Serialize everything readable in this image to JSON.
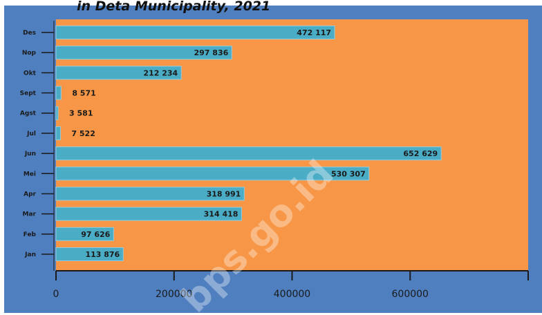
{
  "header": {
    "title_fragment": "in Deta Municipality, 2021"
  },
  "watermark": "bps.go.id",
  "colors": {
    "background": "#4f7fbf",
    "plot_area": "#f79646",
    "bar": "#4bacc6",
    "bar_stroke": "#93cddd"
  },
  "chart_data": {
    "type": "bar",
    "orientation": "horizontal",
    "categories": [
      "Jan",
      "Feb",
      "Mar",
      "Apr",
      "Mei",
      "Jun",
      "Jul",
      "Agst",
      "Sept",
      "Okt",
      "Nop",
      "Des"
    ],
    "values": [
      113876,
      97626,
      314418,
      318991,
      530307,
      652629,
      7522,
      3581,
      8571,
      212234,
      297836,
      472117
    ],
    "value_labels": [
      "113 876",
      "97 626",
      "314 418",
      "318 991",
      "530 307",
      "652 629",
      "7 522",
      "3 581",
      "8 571",
      "212 234",
      "297 836",
      "472 117"
    ],
    "xlim": [
      0,
      800000
    ],
    "xticks": [
      0,
      200000,
      400000,
      600000
    ],
    "xtick_labels": [
      "0",
      "200000",
      "400000",
      "600000"
    ],
    "grid": false,
    "legend": "none",
    "title": "in Deta Municipality, 2021",
    "xlabel": "",
    "ylabel": ""
  }
}
